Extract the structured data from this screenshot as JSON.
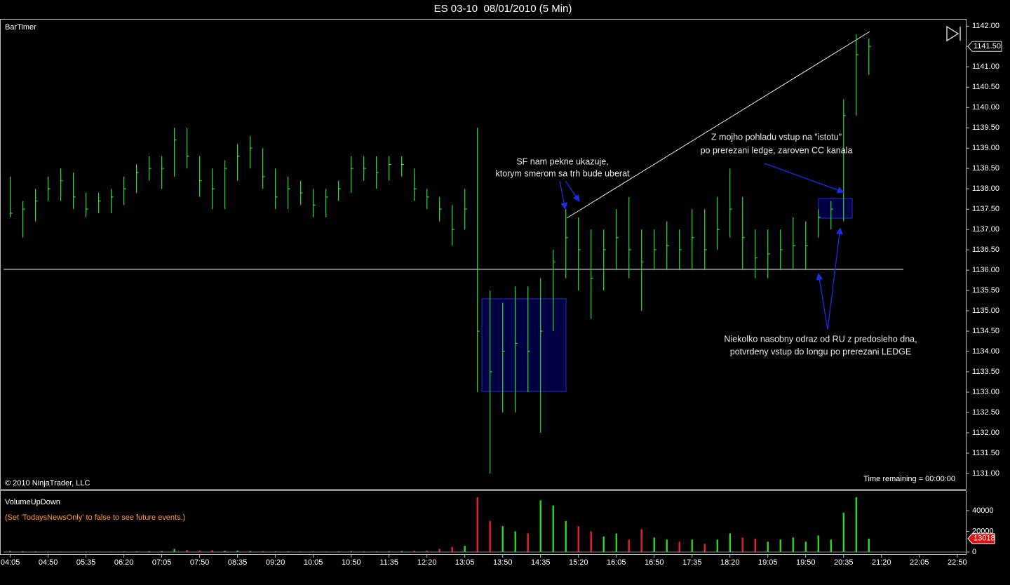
{
  "title": "ES 03-10  08/01/2010 (5 Min)",
  "panel_label": "BarTimer",
  "copyright": "© 2010 NinjaTrader, LLC",
  "time_remaining": "Time remaining = 00:00:00",
  "chart_data": [
    {
      "type": "hlc",
      "x": [
        "04:05",
        "04:20",
        "04:35",
        "04:50",
        "05:05",
        "05:20",
        "05:35",
        "05:50",
        "06:05",
        "06:20",
        "06:35",
        "06:50",
        "07:05",
        "07:20",
        "07:35",
        "07:50",
        "08:05",
        "08:20",
        "08:35",
        "08:50",
        "09:05",
        "09:20",
        "09:35",
        "09:50",
        "10:05",
        "10:20",
        "10:35",
        "10:50",
        "11:05",
        "11:20",
        "11:35",
        "11:50",
        "12:05",
        "12:20",
        "12:35",
        "12:50",
        "13:05",
        "13:20",
        "13:35",
        "13:50",
        "14:05",
        "14:20",
        "14:35",
        "14:50",
        "15:05",
        "15:20",
        "15:35",
        "15:50",
        "16:05",
        "16:20",
        "16:35",
        "16:50",
        "17:05",
        "17:20",
        "17:35",
        "17:50",
        "18:05",
        "18:20",
        "18:35",
        "18:50",
        "19:05",
        "19:20",
        "19:35",
        "19:50",
        "20:05",
        "20:20",
        "20:35",
        "20:50",
        "21:05"
      ],
      "high": [
        1138.3,
        1137.7,
        1138.0,
        1138.3,
        1138.5,
        1138.4,
        1137.9,
        1137.9,
        1138.0,
        1138.3,
        1138.6,
        1138.8,
        1138.8,
        1139.5,
        1139.5,
        1138.8,
        1138.5,
        1138.7,
        1139.1,
        1139.3,
        1139.0,
        1138.5,
        1138.3,
        1138.2,
        1138.0,
        1138.0,
        1138.2,
        1138.8,
        1138.8,
        1138.8,
        1138.8,
        1138.8,
        1138.5,
        1138.0,
        1137.8,
        1137.6,
        1138.0,
        1139.5,
        1135.5,
        1135.2,
        1135.6,
        1135.6,
        1135.8,
        1136.5,
        1137.5,
        1137.3,
        1137.0,
        1137.0,
        1137.5,
        1137.8,
        1137.0,
        1137.0,
        1137.2,
        1137.0,
        1137.5,
        1137.5,
        1137.8,
        1138.5,
        1137.8,
        1137.0,
        1137.0,
        1137.0,
        1137.3,
        1137.2,
        1137.5,
        1137.7,
        1140.2,
        1141.8,
        1141.7
      ],
      "low": [
        1137.3,
        1136.8,
        1137.2,
        1137.7,
        1137.7,
        1137.5,
        1137.3,
        1137.4,
        1137.4,
        1137.6,
        1137.9,
        1138.2,
        1138.0,
        1138.3,
        1138.5,
        1137.8,
        1137.5,
        1137.5,
        1138.2,
        1138.5,
        1138.0,
        1137.5,
        1137.5,
        1137.6,
        1137.3,
        1137.3,
        1137.7,
        1137.9,
        1138.2,
        1138.0,
        1138.2,
        1138.3,
        1137.7,
        1137.5,
        1137.2,
        1136.6,
        1137.0,
        1133.0,
        1131.0,
        1132.5,
        1132.5,
        1133.0,
        1132.0,
        1134.5,
        1135.8,
        1135.5,
        1134.8,
        1135.5,
        1136.0,
        1135.8,
        1135.0,
        1136.0,
        1136.0,
        1136.0,
        1136.0,
        1136.0,
        1136.5,
        1136.8,
        1136.0,
        1135.8,
        1135.8,
        1136.0,
        1136.0,
        1136.0,
        1136.8,
        1137.0,
        1137.2,
        1139.8,
        1140.8
      ],
      "close": [
        1137.4,
        1137.5,
        1137.7,
        1138.0,
        1138.2,
        1137.8,
        1137.5,
        1137.7,
        1137.8,
        1138.0,
        1138.4,
        1138.5,
        1138.5,
        1139.2,
        1138.8,
        1138.2,
        1138.0,
        1138.5,
        1138.8,
        1139.0,
        1138.3,
        1137.8,
        1138.0,
        1137.9,
        1137.6,
        1137.8,
        1138.0,
        1138.5,
        1138.5,
        1138.4,
        1138.6,
        1138.6,
        1138.0,
        1137.8,
        1137.5,
        1137.0,
        1137.5,
        1134.5,
        1133.5,
        1134.0,
        1134.2,
        1134.0,
        1134.5,
        1136.2,
        1136.8,
        1136.5,
        1135.8,
        1136.5,
        1136.8,
        1136.5,
        1136.2,
        1136.5,
        1136.6,
        1136.5,
        1136.8,
        1136.5,
        1137.0,
        1137.5,
        1136.8,
        1136.3,
        1136.4,
        1136.5,
        1136.6,
        1136.6,
        1137.3,
        1137.5,
        1139.8,
        1141.3,
        1141.5
      ],
      "color": "#33dd33",
      "xlim": [
        "03:57",
        "23:01"
      ],
      "xticks": [
        "04:05",
        "04:50",
        "05:35",
        "06:20",
        "07:05",
        "07:50",
        "08:35",
        "09:20",
        "10:05",
        "10:50",
        "11:35",
        "12:20",
        "13:05",
        "13:50",
        "14:35",
        "15:20",
        "16:05",
        "16:50",
        "17:35",
        "18:20",
        "19:05",
        "19:50",
        "20:35",
        "21:20",
        "22:05",
        "22:50"
      ],
      "ylim": [
        1130.62,
        1142.16
      ],
      "yticks": [
        {
          "value": 1131,
          "label": "1131.00"
        },
        {
          "value": 1131.5,
          "label": "1131.50"
        },
        {
          "value": 1132,
          "label": "1132.00"
        },
        {
          "value": 1132.5,
          "label": "1132.50"
        },
        {
          "value": 1133,
          "label": "1133.00"
        },
        {
          "value": 1133.5,
          "label": "1133.50"
        },
        {
          "value": 1134,
          "label": "1134.00"
        },
        {
          "value": 1134.5,
          "label": "1134.50"
        },
        {
          "value": 1135,
          "label": "1135.00"
        },
        {
          "value": 1135.5,
          "label": "1135.50"
        },
        {
          "value": 1136,
          "label": "1136.00"
        },
        {
          "value": 1136.5,
          "label": "1136.50"
        },
        {
          "value": 1137,
          "label": "1137.00"
        },
        {
          "value": 1137.5,
          "label": "1137.50"
        },
        {
          "value": 1138,
          "label": "1138.00"
        },
        {
          "value": 1138.5,
          "label": "1138.50"
        },
        {
          "value": 1139,
          "label": "1139.00"
        },
        {
          "value": 1139.5,
          "label": "1139.50"
        },
        {
          "value": 1140,
          "label": "1140.00"
        },
        {
          "value": 1140.5,
          "label": "1140.50"
        },
        {
          "value": 1141,
          "label": "1141.00"
        },
        {
          "value": 1141.5,
          "label": "1141.50"
        },
        {
          "value": 1142,
          "label": "1142.00"
        }
      ],
      "last_price": {
        "value": 1141.5,
        "label": "1141.50"
      },
      "annotations": [
        [
          "SF nam pekne ukazuje,",
          "ktorym smerom sa trh bude uberat"
        ],
        [
          "Z mojho pohladu vstup na \"istotu\"",
          "po prerezani ledge, zaroven CC kanala"
        ],
        [
          "Niekolko nasobny odraz od RU z predosleho dna,",
          "potvrdeny vstup do longu po prerezani LEDGE"
        ]
      ]
    },
    {
      "type": "bar",
      "title": "VolumeUpDown",
      "note": "(Set 'TodaysNewsOnly' to false to see future events.)",
      "values": [
        1000,
        800,
        600,
        500,
        500,
        400,
        500,
        400,
        500,
        600,
        700,
        800,
        900,
        3000,
        2000,
        1500,
        1800,
        1200,
        1500,
        1000,
        900,
        800,
        700,
        600,
        600,
        500,
        700,
        900,
        600,
        700,
        800,
        1000,
        1200,
        1500,
        3000,
        5000,
        6000,
        53000,
        30000,
        25000,
        20000,
        18000,
        50000,
        45000,
        30000,
        25000,
        20000,
        15000,
        18000,
        12000,
        22000,
        14000,
        12000,
        10000,
        12000,
        8000,
        12000,
        18000,
        14000,
        13000,
        10000,
        12000,
        14000,
        10000,
        16000,
        12000,
        38000,
        53000,
        13018
      ],
      "up_color": "#22dd22",
      "down_color": "#ee2222",
      "ylim": [
        -2000,
        59000
      ],
      "yticks": [
        0,
        20000,
        40000
      ],
      "last_value": 13018
    }
  ]
}
